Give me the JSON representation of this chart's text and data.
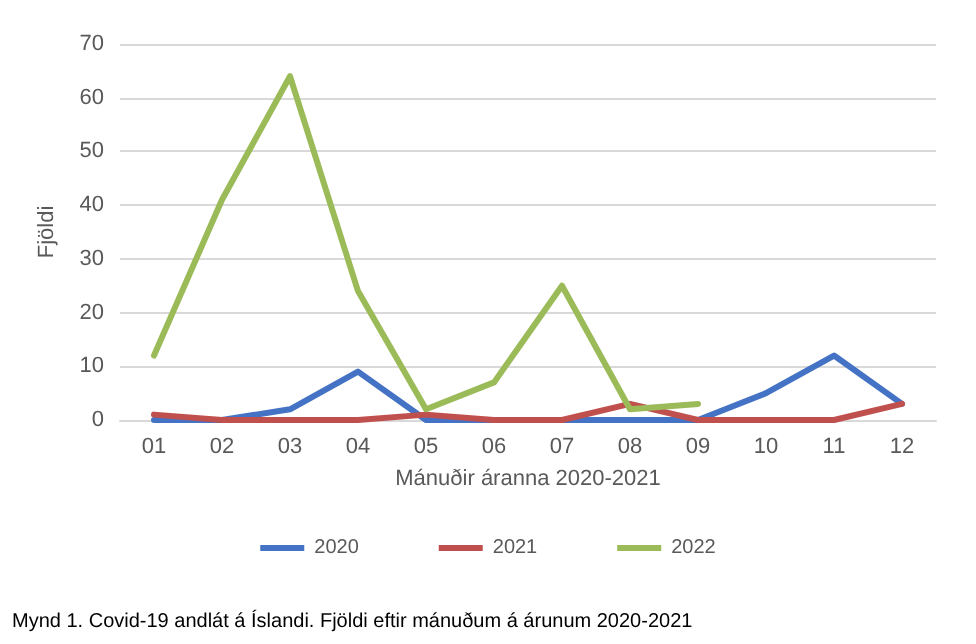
{
  "chart_data": {
    "type": "line",
    "xlabel": "Mánuðir áranna 2020-2021",
    "ylabel": "Fjöldi",
    "categories": [
      "01",
      "02",
      "03",
      "04",
      "05",
      "06",
      "07",
      "08",
      "09",
      "10",
      "11",
      "12"
    ],
    "series": [
      {
        "name": "2020",
        "color": "#4472c4",
        "values": [
          0,
          0,
          2,
          9,
          0,
          0,
          0,
          0,
          0,
          5,
          12,
          3
        ]
      },
      {
        "name": "2021",
        "color": "#c0504d",
        "values": [
          1,
          0,
          0,
          0,
          1,
          0,
          0,
          3,
          0,
          0,
          0,
          3
        ]
      },
      {
        "name": "2022",
        "color": "#9bbb59",
        "values": [
          12,
          41,
          64,
          24,
          2,
          7,
          25,
          2,
          3,
          null,
          null,
          null
        ]
      }
    ],
    "ylim": [
      0,
      70
    ],
    "yticks": [
      0,
      10,
      20,
      30,
      40,
      50,
      60,
      70
    ],
    "grid": "y",
    "legend": "bottom",
    "marker": "none",
    "line_style": "solid",
    "annotations": [
      "Mynd 1. Covid-19 andlát á Íslandi. Fjöldi eftir mánuðum á árunum 2020-2021"
    ]
  }
}
